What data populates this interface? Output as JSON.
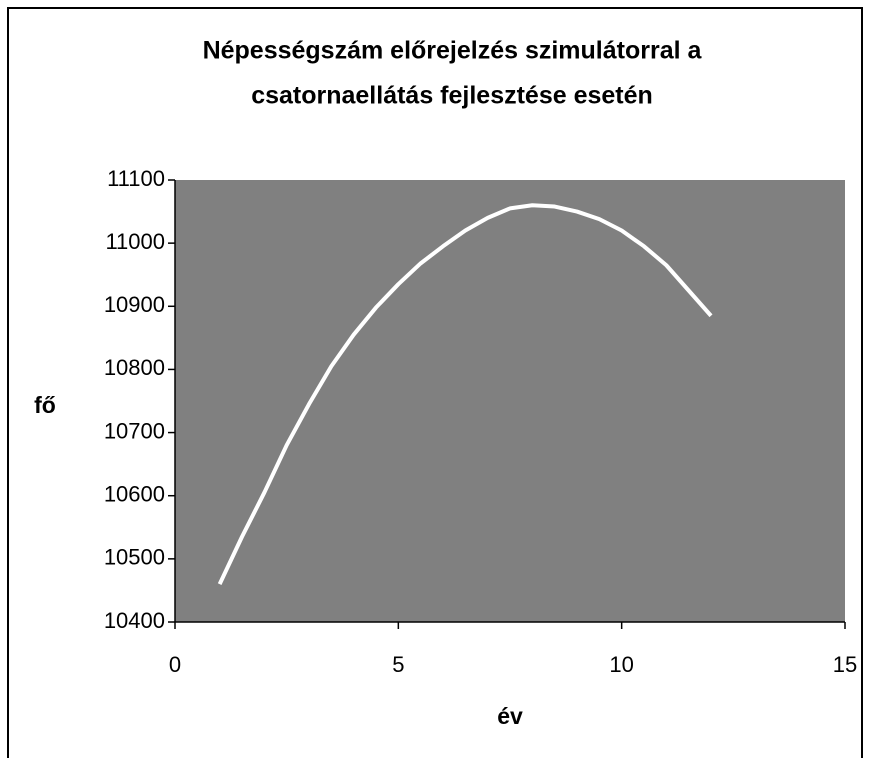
{
  "chart_data": {
    "type": "line",
    "title": [
      "Népességszám előrejelzés szimulátorral a",
      "csatornaellátás fejlesztése esetén"
    ],
    "x_label": "év",
    "y_label": "fő",
    "x": [
      1,
      1.5,
      2,
      2.5,
      3,
      3.5,
      4,
      4.5,
      5,
      5.5,
      6,
      6.5,
      7,
      7.5,
      8,
      8.5,
      9,
      9.5,
      10,
      10.5,
      11,
      11.5,
      12
    ],
    "series": [
      {
        "color": "#ffffff",
        "values": [
          10460,
          10535,
          10605,
          10680,
          10745,
          10805,
          10855,
          10898,
          10935,
          10968,
          10995,
          11020,
          11040,
          11055,
          11060,
          11058,
          11050,
          11038,
          11020,
          10995,
          10965,
          10925,
          10885
        ]
      }
    ],
    "xlim": [
      0,
      15
    ],
    "xticks": [
      0,
      5,
      10,
      15
    ],
    "ylim": [
      10400,
      11100
    ],
    "yticks": [
      10400,
      10500,
      10600,
      10700,
      10800,
      10900,
      11000,
      11100
    ],
    "plot_background": "#808080",
    "grid": false
  }
}
